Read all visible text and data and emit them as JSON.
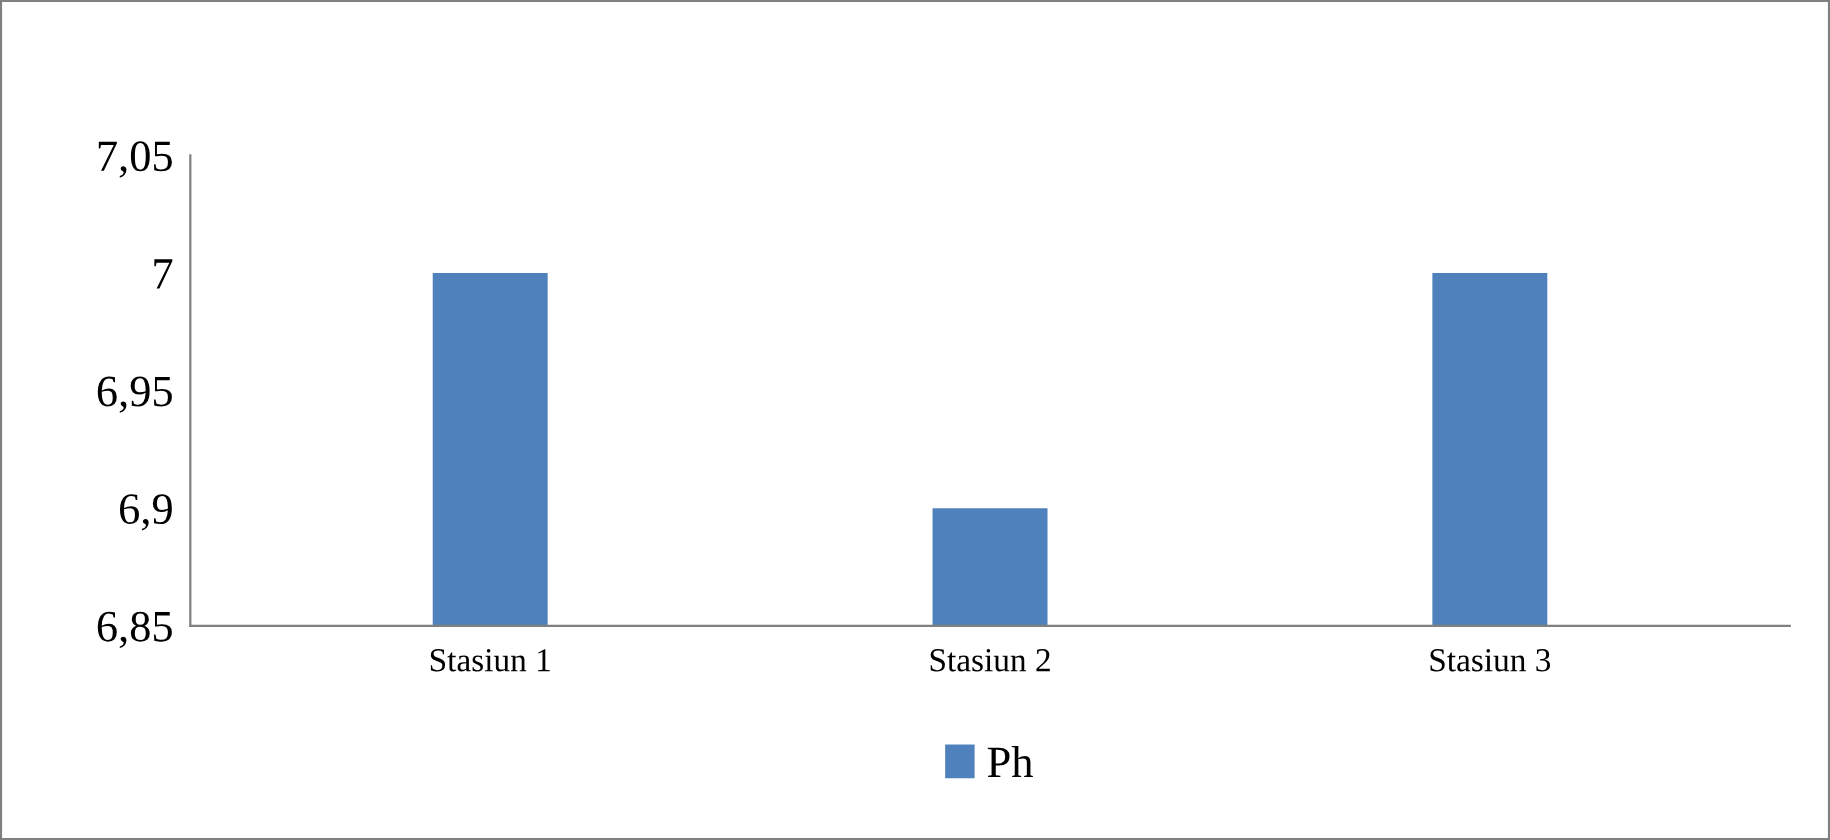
{
  "chart_data": {
    "type": "bar",
    "categories": [
      "Stasiun 1",
      "Stasiun 2",
      "Stasiun 3"
    ],
    "series": [
      {
        "name": "Ph",
        "color": "#4f81bd",
        "values": [
          7,
          6.9,
          7
        ]
      }
    ],
    "ylim": [
      6.85,
      7.05
    ],
    "yticks": [
      {
        "value": 6.85,
        "label": "6,85"
      },
      {
        "value": 6.9,
        "label": "6,9"
      },
      {
        "value": 6.95,
        "label": "6,95"
      },
      7,
      {
        "value": 7.05,
        "label": "7,05"
      }
    ],
    "legend": "bottom"
  }
}
